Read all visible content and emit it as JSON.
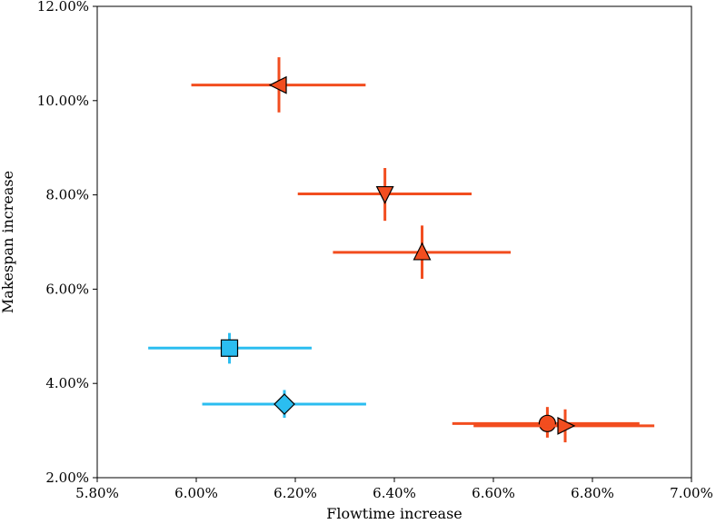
{
  "chart_data": {
    "type": "scatter",
    "title": "",
    "xlabel": "Flowtime increase",
    "ylabel": "Makespan increase",
    "xlim": [
      5.8,
      7.0
    ],
    "ylim": [
      2.0,
      12.0
    ],
    "xticks": [
      {
        "value": 5.8,
        "label": "5.80%"
      },
      {
        "value": 6.0,
        "label": "6.00%"
      },
      {
        "value": 6.2,
        "label": "6.20%"
      },
      {
        "value": 6.4,
        "label": "6.40%"
      },
      {
        "value": 6.6,
        "label": "6.60%"
      },
      {
        "value": 6.8,
        "label": "6.80%"
      },
      {
        "value": 7.0,
        "label": "7.00%"
      }
    ],
    "yticks": [
      {
        "value": 2.0,
        "label": "2.00%"
      },
      {
        "value": 4.0,
        "label": "4.00%"
      },
      {
        "value": 6.0,
        "label": "6.00%"
      },
      {
        "value": 8.0,
        "label": "8.00%"
      },
      {
        "value": 10.0,
        "label": "10.00%"
      },
      {
        "value": 12.0,
        "label": "12.00%"
      }
    ],
    "grid": false,
    "colors": {
      "orange": "#f24d1f",
      "blue": "#2bbdf0",
      "edge": "#000000"
    },
    "points": [
      {
        "marker": "triangle-left",
        "color": "orange",
        "x": 6.167,
        "y": 10.33,
        "xerr": [
          5.99,
          6.342
        ],
        "yerr": [
          9.75,
          10.92
        ]
      },
      {
        "marker": "triangle-down",
        "color": "orange",
        "x": 6.381,
        "y": 8.02,
        "xerr": [
          6.205,
          6.556
        ],
        "yerr": [
          7.45,
          8.57
        ]
      },
      {
        "marker": "triangle-up",
        "color": "orange",
        "x": 6.456,
        "y": 6.78,
        "xerr": [
          6.276,
          6.635
        ],
        "yerr": [
          6.22,
          7.35
        ]
      },
      {
        "marker": "square",
        "color": "blue",
        "x": 6.067,
        "y": 4.75,
        "xerr": [
          5.903,
          6.233
        ],
        "yerr": [
          4.42,
          5.07
        ]
      },
      {
        "marker": "diamond",
        "color": "blue",
        "x": 6.178,
        "y": 3.56,
        "xerr": [
          6.012,
          6.343
        ],
        "yerr": [
          3.27,
          3.86
        ]
      },
      {
        "marker": "circle",
        "color": "orange",
        "x": 6.709,
        "y": 3.15,
        "xerr": [
          6.517,
          6.895
        ],
        "yerr": [
          2.85,
          3.5
        ]
      },
      {
        "marker": "triangle-right",
        "color": "orange",
        "x": 6.745,
        "y": 3.1,
        "xerr": [
          6.56,
          6.925
        ],
        "yerr": [
          2.75,
          3.45
        ]
      }
    ]
  }
}
